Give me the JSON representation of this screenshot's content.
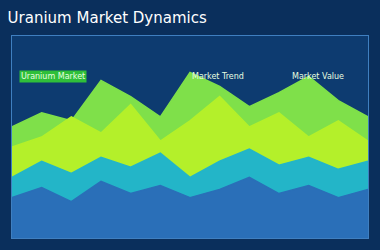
{
  "chart_data": {
    "type": "area",
    "title": "Uranium Market Dynamics",
    "annotations": [
      "Uranium Market",
      "Market Trend",
      "Market Value"
    ],
    "x": [
      0,
      1,
      2,
      3,
      4,
      5,
      6,
      7,
      8,
      9,
      10,
      11,
      12
    ],
    "xlim": [
      0,
      12
    ],
    "ylim": [
      0,
      100
    ],
    "grid": false,
    "tick_labels": false,
    "series": [
      {
        "color": "#7fe04a",
        "values": [
          55,
          62,
          58,
          78,
          70,
          60,
          82,
          75,
          65,
          72,
          80,
          68,
          60
        ]
      },
      {
        "color": "#b4f02a",
        "values": [
          45,
          50,
          60,
          52,
          66,
          48,
          58,
          70,
          55,
          62,
          50,
          58,
          48
        ]
      },
      {
        "color": "#23b5c8",
        "values": [
          30,
          38,
          32,
          40,
          35,
          42,
          30,
          38,
          44,
          36,
          40,
          34,
          38
        ]
      },
      {
        "color": "#2a6fb8",
        "values": [
          20,
          25,
          18,
          28,
          22,
          26,
          20,
          24,
          30,
          22,
          26,
          20,
          24
        ]
      }
    ]
  }
}
